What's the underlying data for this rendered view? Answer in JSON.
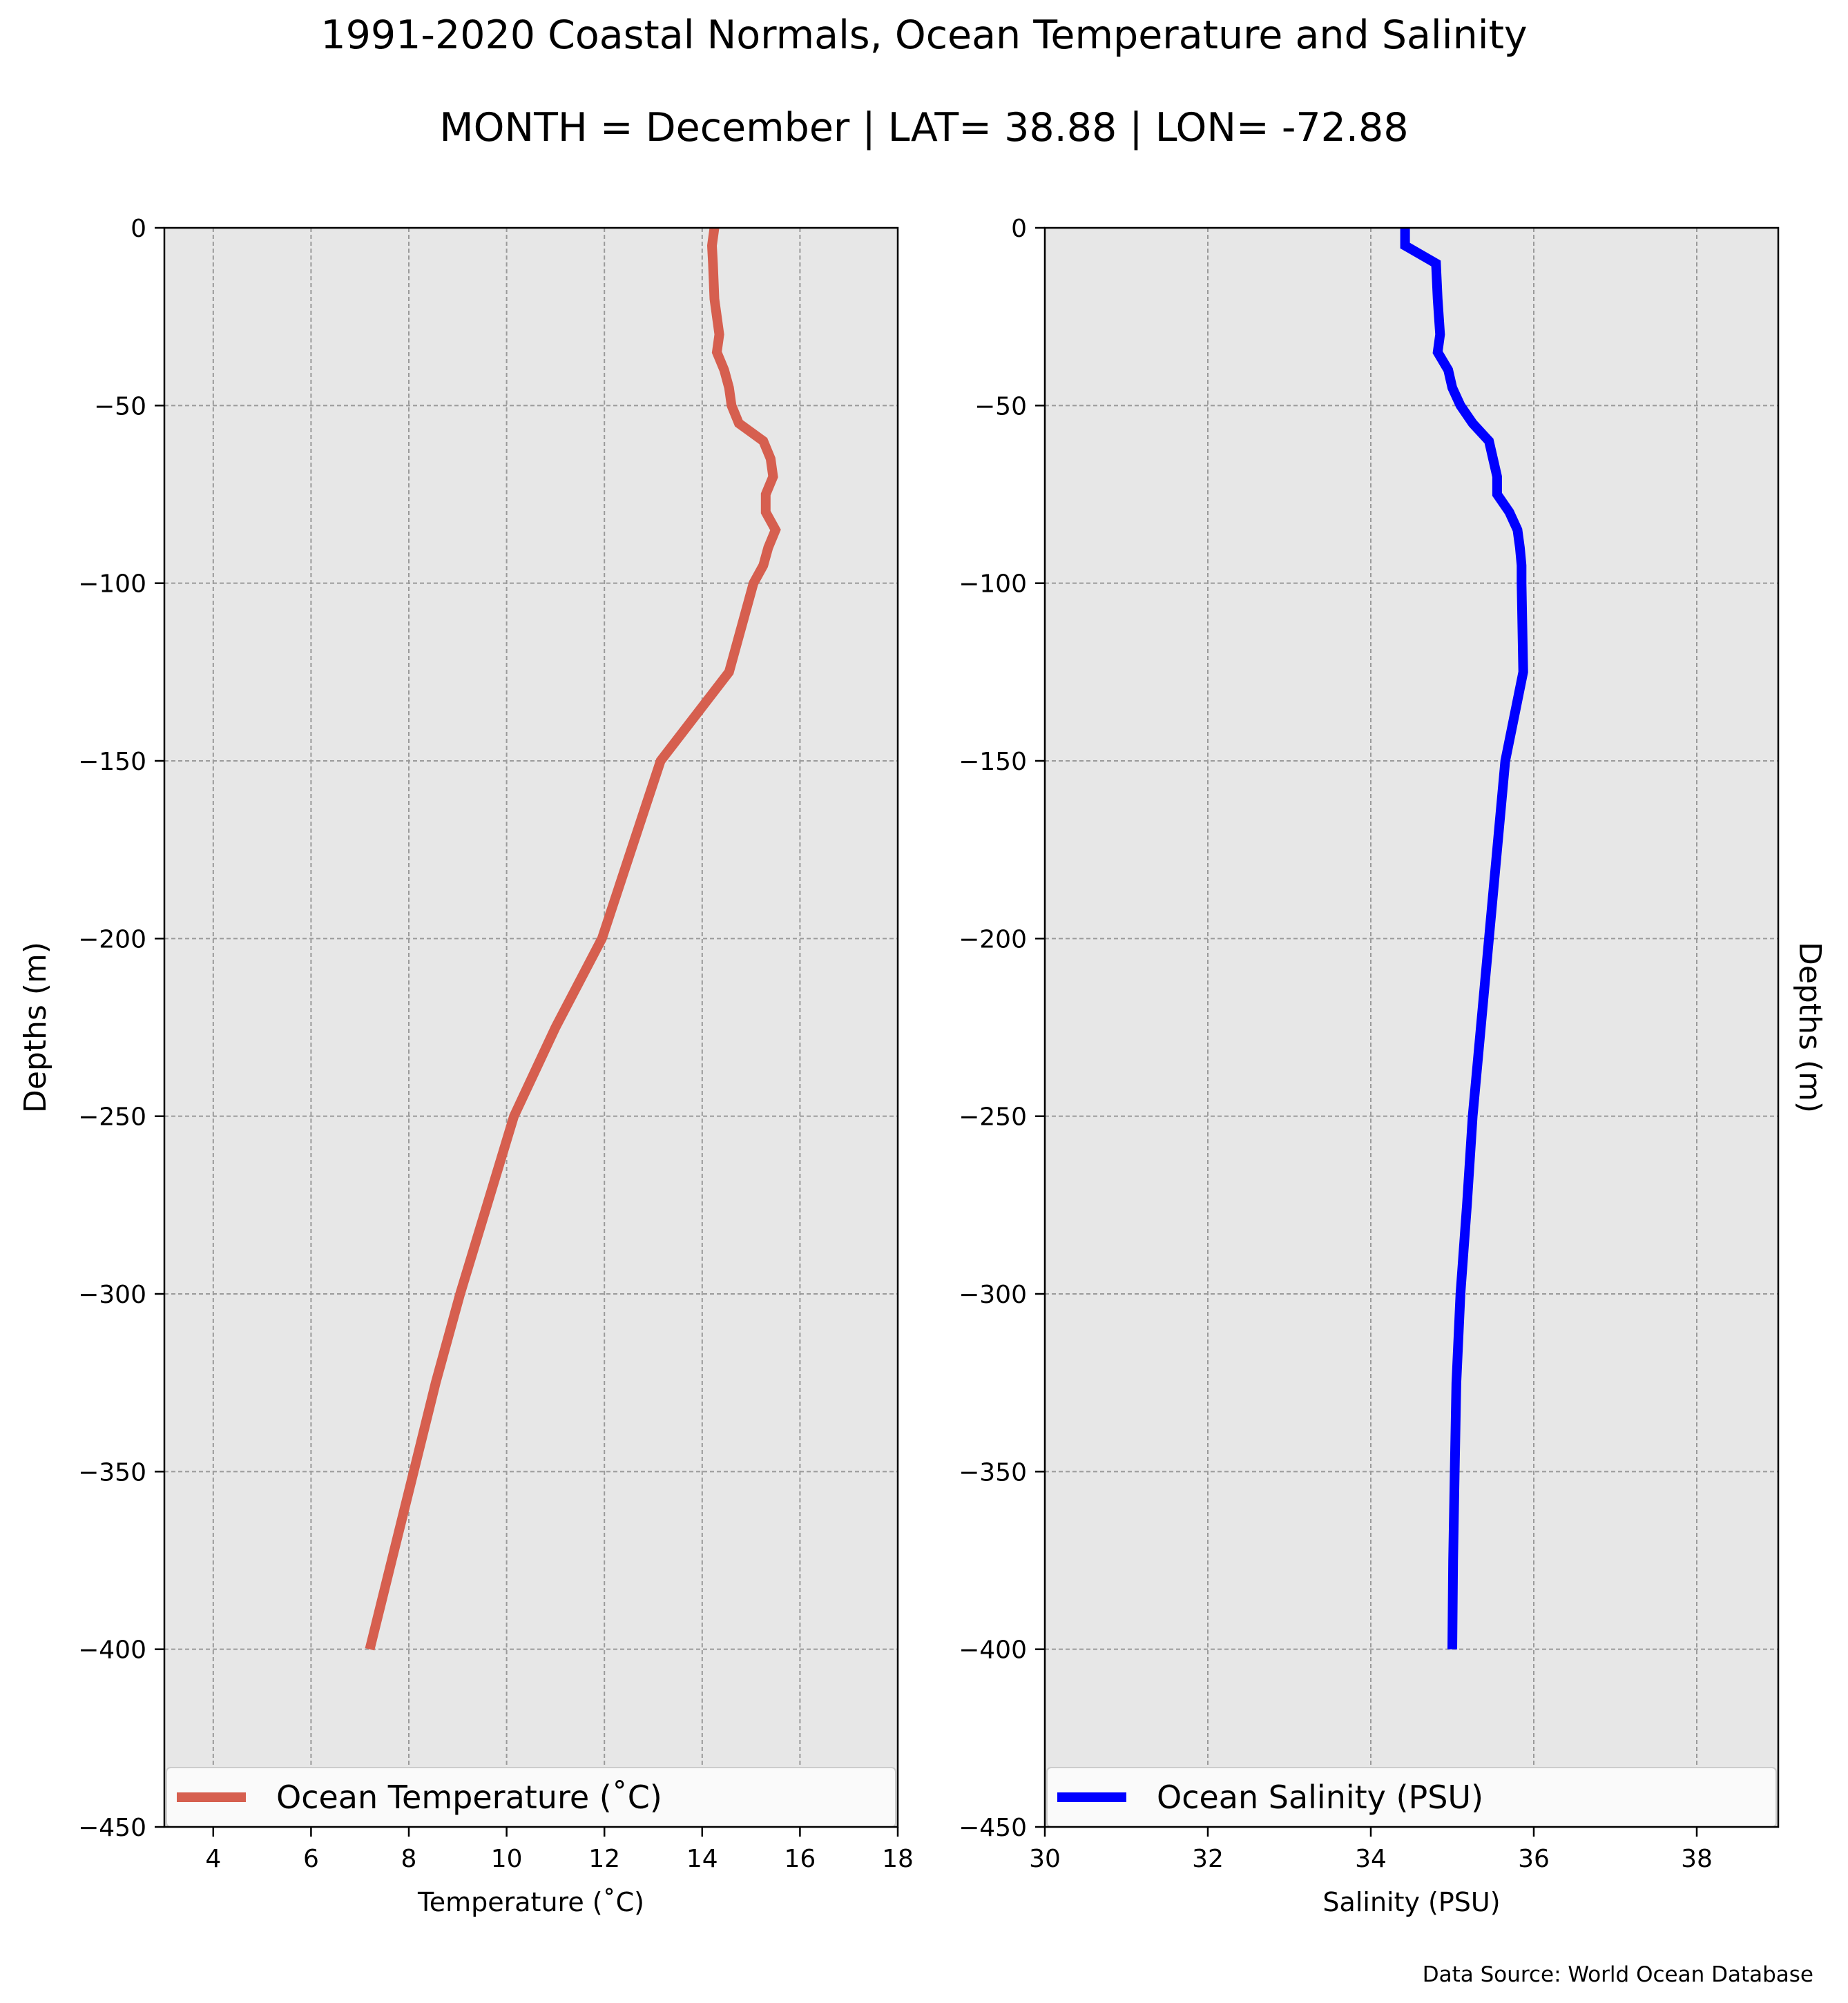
{
  "title": "1991-2020 Coastal Normals, Ocean Temperature and Salinity",
  "subtitle": "MONTH = December | LAT= 38.88 | LON= -72.88",
  "source": "Data Source: World Ocean Database",
  "chart_data": [
    {
      "type": "line",
      "xlabel": "Temperature (˚C)",
      "ylabel": "Depths (m)",
      "xlim": [
        3,
        18
      ],
      "ylim": [
        -450,
        0
      ],
      "xticks": [
        4,
        6,
        8,
        10,
        12,
        14,
        16,
        18
      ],
      "yticks": [
        0,
        -50,
        -100,
        -150,
        -200,
        -250,
        -300,
        -350,
        -400,
        -450
      ],
      "grid": true,
      "legend_position": "bottom",
      "series": [
        {
          "name": "Ocean Temperature (˚C)",
          "color": "#d65f4f",
          "points": [
            [
              14.25,
              0
            ],
            [
              14.2,
              -5
            ],
            [
              14.22,
              -10
            ],
            [
              14.25,
              -20
            ],
            [
              14.35,
              -30
            ],
            [
              14.3,
              -35
            ],
            [
              14.45,
              -40
            ],
            [
              14.55,
              -45
            ],
            [
              14.6,
              -50
            ],
            [
              14.75,
              -55
            ],
            [
              15.25,
              -60
            ],
            [
              15.4,
              -65
            ],
            [
              15.45,
              -70
            ],
            [
              15.3,
              -75
            ],
            [
              15.3,
              -80
            ],
            [
              15.5,
              -85
            ],
            [
              15.35,
              -90
            ],
            [
              15.25,
              -95
            ],
            [
              15.05,
              -100
            ],
            [
              14.55,
              -125
            ],
            [
              13.15,
              -150
            ],
            [
              12.55,
              -175
            ],
            [
              11.95,
              -200
            ],
            [
              11.0,
              -225
            ],
            [
              10.15,
              -250
            ],
            [
              9.6,
              -275
            ],
            [
              9.05,
              -300
            ],
            [
              8.55,
              -325
            ],
            [
              8.1,
              -350
            ],
            [
              7.65,
              -375
            ],
            [
              7.2,
              -400
            ]
          ]
        }
      ]
    },
    {
      "type": "line",
      "xlabel": "Salinity (PSU)",
      "ylabel": "Depths (m)",
      "xlim": [
        30,
        39
      ],
      "ylim": [
        -450,
        0
      ],
      "xticks": [
        30,
        32,
        34,
        36,
        38
      ],
      "yticks": [
        0,
        -50,
        -100,
        -150,
        -200,
        -250,
        -300,
        -350,
        -400,
        -450
      ],
      "grid": true,
      "legend_position": "bottom",
      "series": [
        {
          "name": "Ocean Salinity (PSU)",
          "color": "#0000ff",
          "points": [
            [
              34.42,
              0
            ],
            [
              34.42,
              -5
            ],
            [
              34.8,
              -10
            ],
            [
              34.82,
              -20
            ],
            [
              34.85,
              -30
            ],
            [
              34.82,
              -35
            ],
            [
              34.95,
              -40
            ],
            [
              35.0,
              -45
            ],
            [
              35.1,
              -50
            ],
            [
              35.25,
              -55
            ],
            [
              35.45,
              -60
            ],
            [
              35.5,
              -65
            ],
            [
              35.55,
              -70
            ],
            [
              35.55,
              -75
            ],
            [
              35.7,
              -80
            ],
            [
              35.8,
              -85
            ],
            [
              35.83,
              -90
            ],
            [
              35.85,
              -95
            ],
            [
              35.85,
              -100
            ],
            [
              35.87,
              -125
            ],
            [
              35.65,
              -150
            ],
            [
              35.55,
              -175
            ],
            [
              35.45,
              -200
            ],
            [
              35.35,
              -225
            ],
            [
              35.25,
              -250
            ],
            [
              35.18,
              -275
            ],
            [
              35.1,
              -300
            ],
            [
              35.05,
              -325
            ],
            [
              35.03,
              -350
            ],
            [
              35.01,
              -375
            ],
            [
              35.0,
              -400
            ]
          ]
        }
      ]
    }
  ]
}
